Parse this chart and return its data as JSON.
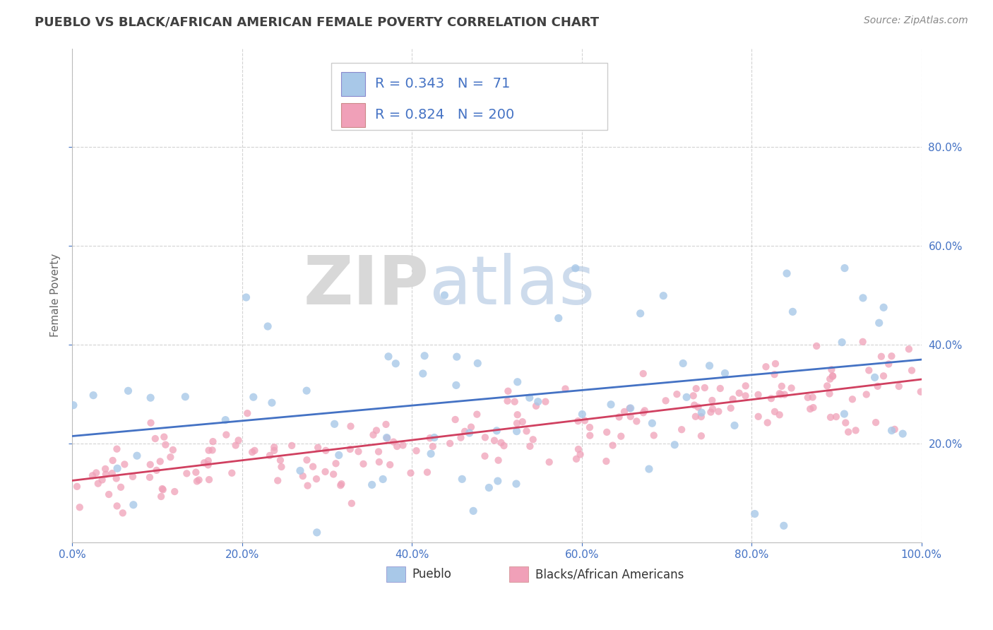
{
  "title": "PUEBLO VS BLACK/AFRICAN AMERICAN FEMALE POVERTY CORRELATION CHART",
  "source": "Source: ZipAtlas.com",
  "ylabel": "Female Poverty",
  "pueblo_color": "#a8c8e8",
  "black_color": "#f0a0b8",
  "pueblo_line_color": "#4472c4",
  "black_line_color": "#d04060",
  "title_color": "#404040",
  "legend_text_color": "#4472c4",
  "background_color": "#ffffff",
  "grid_color": "#c8c8c8",
  "tick_color": "#4472c4",
  "watermark_zip": "ZIP",
  "watermark_atlas": "atlas",
  "xlim": [
    0.0,
    1.0
  ],
  "ylim": [
    0.0,
    1.0
  ],
  "yticks": [
    0.2,
    0.4,
    0.6,
    0.8
  ],
  "ytick_labels": [
    "20.0%",
    "40.0%",
    "60.0%",
    "80.0%"
  ],
  "xticks": [
    0.0,
    0.2,
    0.4,
    0.6,
    0.8,
    1.0
  ],
  "xtick_labels": [
    "0.0%",
    "20.0%",
    "40.0%",
    "60.0%",
    "80.0%",
    "100.0%"
  ],
  "pueblo_intercept": 0.215,
  "pueblo_slope": 0.155,
  "black_intercept": 0.125,
  "black_slope": 0.205,
  "pueblo_n": 71,
  "black_n": 200,
  "pueblo_r": 0.343,
  "black_r": 0.824,
  "title_fontsize": 13,
  "source_fontsize": 10,
  "tick_fontsize": 11,
  "ylabel_fontsize": 11,
  "legend_fontsize": 14,
  "watermark_fontsize_zip": 70,
  "watermark_fontsize_atlas": 70
}
